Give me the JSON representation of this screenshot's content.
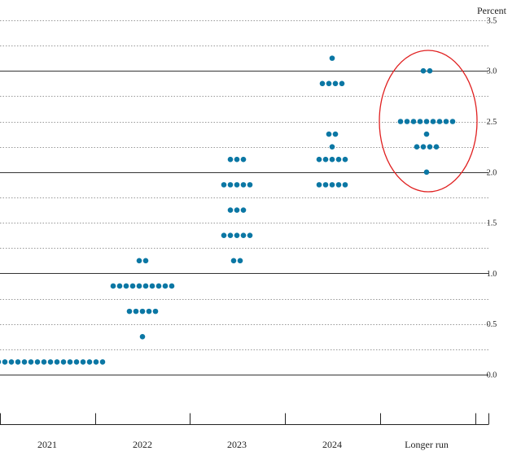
{
  "chart_data": {
    "type": "scatter",
    "unit_label": "Percent",
    "ylim": [
      -0.25,
      3.625
    ],
    "yticks": [
      {
        "value": 0.0,
        "label": "0.0"
      },
      {
        "value": 0.5,
        "label": "0.5"
      },
      {
        "value": 1.0,
        "label": "1.0"
      },
      {
        "value": 1.5,
        "label": "1.5"
      },
      {
        "value": 2.0,
        "label": "2.0"
      },
      {
        "value": 2.5,
        "label": "2.5"
      },
      {
        "value": 3.0,
        "label": "3.0"
      },
      {
        "value": 3.5,
        "label": "3.5"
      }
    ],
    "categories": [
      "2021",
      "2022",
      "2023",
      "2024",
      "Longer run"
    ],
    "dot_color": "#0b77a4",
    "highlight_color": "#e02020",
    "highlight_category": "Longer run",
    "grid": "dotted minor lines every 0.25, solid major lines at whole numbers",
    "columns": [
      {
        "category": "2021",
        "dots": [
          {
            "value": 0.125,
            "count": 18
          }
        ]
      },
      {
        "category": "2022",
        "dots": [
          {
            "value": 0.375,
            "count": 1
          },
          {
            "value": 0.625,
            "count": 5
          },
          {
            "value": 0.875,
            "count": 10
          },
          {
            "value": 1.125,
            "count": 2
          }
        ]
      },
      {
        "category": "2023",
        "dots": [
          {
            "value": 1.125,
            "count": 2
          },
          {
            "value": 1.375,
            "count": 5
          },
          {
            "value": 1.625,
            "count": 3
          },
          {
            "value": 1.875,
            "count": 5
          },
          {
            "value": 2.125,
            "count": 3
          }
        ]
      },
      {
        "category": "2024",
        "dots": [
          {
            "value": 1.875,
            "count": 5
          },
          {
            "value": 2.125,
            "count": 5
          },
          {
            "value": 2.25,
            "count": 1
          },
          {
            "value": 2.375,
            "count": 2
          },
          {
            "value": 2.875,
            "count": 4
          },
          {
            "value": 3.125,
            "count": 1
          }
        ]
      },
      {
        "category": "Longer run",
        "dots": [
          {
            "value": 2.0,
            "count": 1
          },
          {
            "value": 2.25,
            "count": 4
          },
          {
            "value": 2.375,
            "count": 1
          },
          {
            "value": 2.5,
            "count": 9
          },
          {
            "value": 3.0,
            "count": 2
          }
        ]
      }
    ]
  }
}
